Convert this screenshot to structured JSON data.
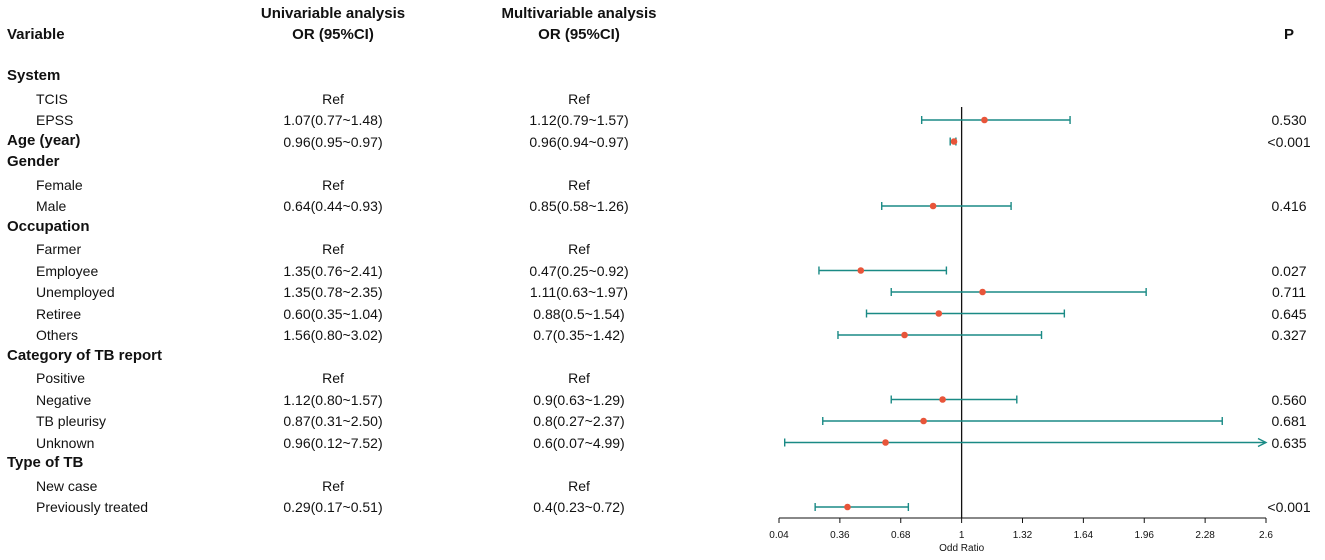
{
  "chart_data": {
    "type": "forest",
    "headers": {
      "variable": "Variable",
      "uni_line1": "Univariable analysis",
      "uni_line2": "OR (95%CI)",
      "multi_line1": "Multivariable analysis",
      "multi_line2": "OR (95%CI)",
      "p": "P"
    },
    "xlabel": "Odd Ratio",
    "xlim": [
      0.04,
      2.6
    ],
    "xticks": [
      "0.04",
      "0.36",
      "0.68",
      "1",
      "1.32",
      "1.64",
      "1.96",
      "2.28",
      "2.6"
    ],
    "ref_line": 1,
    "colors": {
      "ci": "#1a8a85",
      "point": "#e8553a",
      "axis": "#111111"
    },
    "rows": [
      {
        "label": "System",
        "group": true
      },
      {
        "label": "TCIS",
        "uni": "Ref",
        "multi": "Ref",
        "p": ""
      },
      {
        "label": "EPSS",
        "uni": "1.07(0.77~1.48)",
        "multi": "1.12(0.79~1.57)",
        "p": "0.530",
        "or": 1.12,
        "lo": 0.79,
        "hi": 1.57
      },
      {
        "label": "Age (year)",
        "group": true,
        "uni": "0.96(0.95~0.97)",
        "multi": "0.96(0.94~0.97)",
        "p": "<0.001",
        "or": 0.96,
        "lo": 0.94,
        "hi": 0.97
      },
      {
        "label": "Gender",
        "group": true
      },
      {
        "label": "Female",
        "uni": "Ref",
        "multi": "Ref",
        "p": ""
      },
      {
        "label": "Male",
        "uni": "0.64(0.44~0.93)",
        "multi": "0.85(0.58~1.26)",
        "p": "0.416",
        "or": 0.85,
        "lo": 0.58,
        "hi": 1.26
      },
      {
        "label": "Occupation",
        "group": true
      },
      {
        "label": "Farmer",
        "uni": "Ref",
        "multi": "Ref",
        "p": ""
      },
      {
        "label": "Employee",
        "uni": "1.35(0.76~2.41)",
        "multi": "0.47(0.25~0.92)",
        "p": "0.027",
        "or": 0.47,
        "lo": 0.25,
        "hi": 0.92
      },
      {
        "label": "Unemployed",
        "uni": "1.35(0.78~2.35)",
        "multi": "1.11(0.63~1.97)",
        "p": "0.711",
        "or": 1.11,
        "lo": 0.63,
        "hi": 1.97
      },
      {
        "label": "Retiree",
        "uni": "0.60(0.35~1.04)",
        "multi": "0.88(0.5~1.54)",
        "p": "0.645",
        "or": 0.88,
        "lo": 0.5,
        "hi": 1.54
      },
      {
        "label": "Others",
        "uni": "1.56(0.80~3.02)",
        "multi": "0.7(0.35~1.42)",
        "p": "0.327",
        "or": 0.7,
        "lo": 0.35,
        "hi": 1.42
      },
      {
        "label": "Category of TB report",
        "group": true
      },
      {
        "label": "Positive",
        "uni": "Ref",
        "multi": "Ref",
        "p": ""
      },
      {
        "label": "Negative",
        "uni": "1.12(0.80~1.57)",
        "multi": "0.9(0.63~1.29)",
        "p": "0.560",
        "or": 0.9,
        "lo": 0.63,
        "hi": 1.29
      },
      {
        "label": "TB pleurisy",
        "uni": "0.87(0.31~2.50)",
        "multi": "0.8(0.27~2.37)",
        "p": "0.681",
        "or": 0.8,
        "lo": 0.27,
        "hi": 2.37
      },
      {
        "label": "Unknown",
        "uni": "0.96(0.12~7.52)",
        "multi": "0.6(0.07~4.99)",
        "p": "0.635",
        "or": 0.6,
        "lo": 0.07,
        "hi": 4.99
      },
      {
        "label": "Type of TB",
        "group": true
      },
      {
        "label": "New case",
        "uni": "Ref",
        "multi": "Ref",
        "p": ""
      },
      {
        "label": "Previously treated",
        "uni": "0.29(0.17~0.51)",
        "multi": "0.4(0.23~0.72)",
        "p": "<0.001",
        "or": 0.4,
        "lo": 0.23,
        "hi": 0.72
      }
    ]
  }
}
